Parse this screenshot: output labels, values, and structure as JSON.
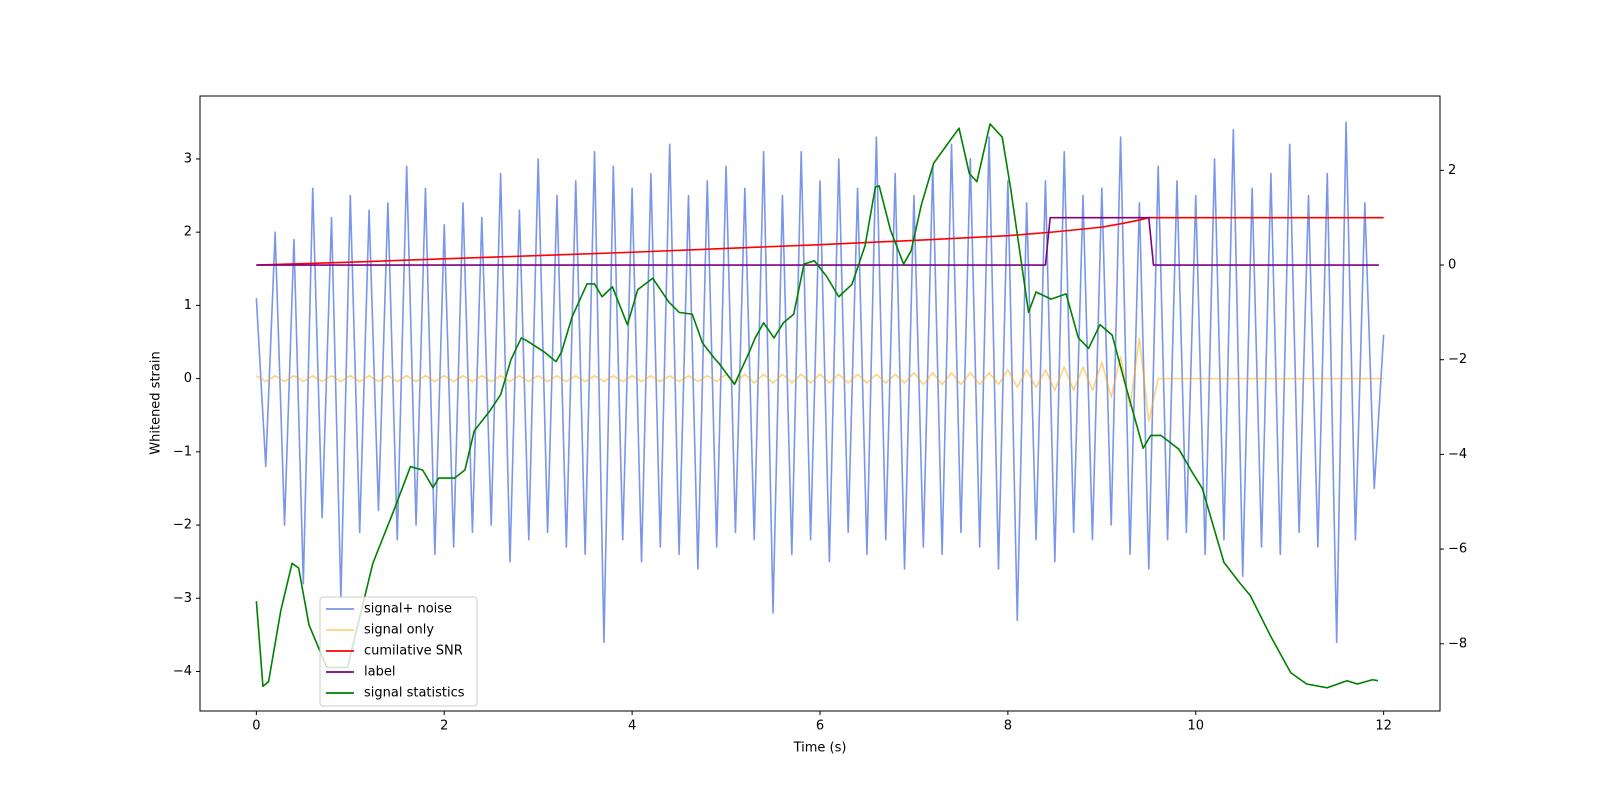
{
  "chart_data": {
    "type": "line",
    "xlabel": "Time (s)",
    "ylabel": "Whitened strain",
    "xlim": [
      -0.6,
      12.6
    ],
    "ylim": [
      -4.54,
      3.86
    ],
    "y2lim": [
      -9.42,
      3.57
    ],
    "xticks": [
      0,
      2,
      4,
      6,
      8,
      10,
      12
    ],
    "yticks": [
      {
        "value": -4,
        "label": "−4"
      },
      {
        "value": -3,
        "label": "−3"
      },
      {
        "value": -2,
        "label": "−2"
      },
      {
        "value": -1,
        "label": "−1"
      },
      0,
      1,
      2,
      3
    ],
    "y2ticks": [
      {
        "value": -8,
        "label": "−8"
      },
      {
        "value": -6,
        "label": "−6"
      },
      {
        "value": -4,
        "label": "−4"
      },
      {
        "value": -2,
        "label": "−2"
      },
      0,
      2
    ],
    "legend_loc": "lower left",
    "x": [
      0,
      0.1,
      0.2,
      0.3,
      0.4,
      0.5,
      0.6,
      0.7,
      0.8,
      0.9,
      1,
      1.1,
      1.2,
      1.3,
      1.4,
      1.5,
      1.6,
      1.7,
      1.8,
      1.9,
      2,
      2.1,
      2.2,
      2.3,
      2.4,
      2.5,
      2.6,
      2.7,
      2.8,
      2.9,
      3,
      3.1,
      3.2,
      3.3,
      3.4,
      3.5,
      3.6,
      3.7,
      3.8,
      3.9,
      4,
      4.1,
      4.2,
      4.3,
      4.4,
      4.5,
      4.6,
      4.7,
      4.8,
      4.9,
      5,
      5.1,
      5.2,
      5.3,
      5.4,
      5.5,
      5.6,
      5.7,
      5.8,
      5.9,
      6,
      6.1,
      6.2,
      6.3,
      6.4,
      6.5,
      6.6,
      6.7,
      6.8,
      6.9,
      7,
      7.1,
      7.2,
      7.3,
      7.4,
      7.5,
      7.6,
      7.7,
      7.8,
      7.9,
      8,
      8.1,
      8.2,
      8.3,
      8.4,
      8.5,
      8.6,
      8.7,
      8.8,
      8.9,
      9,
      9.1,
      9.2,
      9.3,
      9.4,
      9.5,
      9.6,
      9.7,
      9.8,
      9.9,
      10,
      10.1,
      10.2,
      10.3,
      10.4,
      10.5,
      10.6,
      10.7,
      10.8,
      10.9,
      11,
      11.1,
      11.2,
      11.3,
      11.4,
      11.5,
      11.6,
      11.7,
      11.8,
      11.9,
      12
    ],
    "series": [
      {
        "name": "signal+ noise",
        "color": "#4169e1",
        "alpha": 0.7,
        "values": [
          1.1,
          -1.2,
          2.0,
          -2.0,
          1.9,
          -2.8,
          2.6,
          -1.9,
          2.2,
          -3.0,
          2.5,
          -2.1,
          2.3,
          -1.8,
          2.4,
          -2.2,
          2.9,
          -2.0,
          2.6,
          -2.4,
          2.1,
          -2.3,
          2.4,
          -2.1,
          2.2,
          -2.0,
          2.8,
          -2.5,
          2.3,
          -2.2,
          3.0,
          -2.1,
          2.5,
          -2.3,
          2.7,
          -2.4,
          3.1,
          -3.6,
          2.9,
          -2.2,
          2.6,
          -2.5,
          2.8,
          -2.3,
          3.2,
          -2.4,
          2.5,
          -2.6,
          2.7,
          -2.3,
          2.9,
          -2.1,
          2.6,
          -2.2,
          3.1,
          -3.2,
          2.5,
          -2.4,
          3.1,
          -2.2,
          2.7,
          -2.5,
          3.0,
          -2.1,
          2.6,
          -2.4,
          3.3,
          -2.2,
          2.8,
          -2.6,
          2.5,
          -2.3,
          2.9,
          -2.4,
          3.2,
          -2.1,
          3.0,
          -2.3,
          3.3,
          -2.6,
          2.7,
          -3.3,
          2.4,
          -2.2,
          2.7,
          -2.5,
          3.1,
          -2.1,
          2.5,
          -2.2,
          2.6,
          -2.0,
          3.3,
          -2.4,
          2.4,
          -2.6,
          2.9,
          -2.2,
          2.7,
          -2.1,
          2.5,
          -2.4,
          3.0,
          -2.2,
          3.4,
          -2.7,
          2.6,
          -2.3,
          2.8,
          -2.4,
          3.2,
          -2.1,
          2.5,
          -2.3,
          2.8,
          -3.6,
          3.5,
          -2.2,
          2.4,
          -1.5,
          0.6
        ]
      },
      {
        "name": "signal only",
        "color": "#ffa500",
        "alpha": 0.5,
        "values": [
          0.04,
          -0.04,
          0.04,
          -0.04,
          0.04,
          -0.04,
          0.04,
          -0.04,
          0.04,
          -0.04,
          0.04,
          -0.04,
          0.04,
          -0.04,
          0.04,
          -0.04,
          0.04,
          -0.04,
          0.04,
          -0.04,
          0.04,
          -0.04,
          0.04,
          -0.04,
          0.04,
          -0.04,
          0.04,
          -0.04,
          0.04,
          -0.04,
          0.04,
          -0.04,
          0.04,
          -0.04,
          0.04,
          -0.04,
          0.04,
          -0.04,
          0.04,
          -0.04,
          0.04,
          -0.04,
          0.04,
          -0.04,
          0.04,
          -0.04,
          0.04,
          -0.04,
          0.04,
          -0.04,
          0.06,
          -0.06,
          0.06,
          -0.06,
          0.06,
          -0.06,
          0.06,
          -0.06,
          0.06,
          -0.06,
          0.06,
          -0.06,
          0.06,
          -0.06,
          0.06,
          -0.06,
          0.06,
          -0.06,
          0.06,
          -0.06,
          0.08,
          -0.08,
          0.08,
          -0.08,
          0.08,
          -0.08,
          0.08,
          -0.08,
          0.08,
          -0.08,
          0.12,
          -0.12,
          0.12,
          -0.12,
          0.12,
          -0.16,
          0.16,
          -0.16,
          0.16,
          -0.16,
          0.22,
          -0.25,
          0.3,
          -0.38,
          0.55,
          -0.58,
          0,
          0,
          0,
          0,
          0,
          0,
          0,
          0,
          0,
          0,
          0,
          0,
          0,
          0,
          0,
          0,
          0,
          0,
          0,
          0,
          0,
          0,
          0,
          0,
          0
        ]
      },
      {
        "name": "cumilative SNR",
        "color": "red",
        "axis": "y2",
        "x": [
          0,
          1,
          2,
          3,
          4,
          5,
          6,
          7,
          8,
          8.5,
          9,
          9.2,
          9.4,
          9.5,
          12
        ],
        "values": [
          0,
          0.06,
          0.13,
          0.2,
          0.27,
          0.35,
          0.43,
          0.52,
          0.62,
          0.7,
          0.8,
          0.87,
          0.95,
          1,
          1
        ]
      },
      {
        "name": "label",
        "color": "purple",
        "axis": "y2",
        "x": [
          0,
          8.4,
          8.45,
          9.5,
          9.55,
          11.95
        ],
        "values": [
          0,
          0,
          1,
          1,
          0,
          0
        ]
      },
      {
        "name": "signal statistics",
        "color": "green",
        "axis": "y2",
        "x": [
          0,
          0.07,
          0.13,
          0.26,
          0.38,
          0.45,
          0.56,
          0.75,
          0.97,
          1.24,
          1.46,
          1.64,
          1.77,
          1.88,
          1.94,
          2.11,
          2.22,
          2.32,
          2.49,
          2.6,
          2.71,
          2.82,
          2.88,
          3.06,
          3.19,
          3.25,
          3.36,
          3.52,
          3.6,
          3.68,
          3.79,
          3.95,
          4.06,
          4.22,
          4.39,
          4.5,
          4.64,
          4.75,
          4.88,
          4.93,
          5.09,
          5.24,
          5.31,
          5.4,
          5.51,
          5.61,
          5.72,
          5.83,
          5.94,
          6.07,
          6.2,
          6.34,
          6.48,
          6.59,
          6.63,
          6.75,
          6.89,
          6.97,
          7.08,
          7.21,
          7.37,
          7.48,
          7.59,
          7.67,
          7.81,
          7.94,
          8.03,
          8.13,
          8.22,
          8.3,
          8.46,
          8.62,
          8.75,
          8.86,
          8.98,
          9.11,
          9.25,
          9.44,
          9.52,
          9.63,
          9.82,
          9.96,
          10.07,
          10.3,
          10.47,
          10.58,
          10.8,
          11.01,
          11.18,
          11.4,
          11.61,
          11.72,
          11.88,
          11.94
        ],
        "values": [
          -7.1,
          -8.9,
          -8.8,
          -7.3,
          -6.3,
          -6.4,
          -7.6,
          -8.5,
          -8.5,
          -6.3,
          -5.2,
          -4.26,
          -4.33,
          -4.7,
          -4.5,
          -4.5,
          -4.33,
          -3.5,
          -3.07,
          -2.74,
          -2.0,
          -1.54,
          -1.6,
          -1.83,
          -2.04,
          -1.83,
          -1.1,
          -0.4,
          -0.4,
          -0.67,
          -0.46,
          -1.26,
          -0.52,
          -0.28,
          -0.78,
          -1.0,
          -1.04,
          -1.65,
          -1.98,
          -2.09,
          -2.52,
          -1.87,
          -1.54,
          -1.22,
          -1.54,
          -1.22,
          -1.04,
          0.02,
          0.09,
          -0.24,
          -0.67,
          -0.41,
          0.41,
          1.65,
          1.67,
          0.74,
          0.02,
          0.3,
          1.28,
          2.15,
          2.59,
          2.89,
          1.93,
          1.76,
          2.98,
          2.7,
          1.61,
          0.24,
          -1.0,
          -0.57,
          -0.72,
          -0.61,
          -1.54,
          -1.76,
          -1.26,
          -1.48,
          -2.52,
          -3.87,
          -3.6,
          -3.6,
          -3.89,
          -4.37,
          -4.72,
          -6.28,
          -6.72,
          -6.98,
          -7.85,
          -8.61,
          -8.85,
          -8.93,
          -8.78,
          -8.85,
          -8.76,
          -8.78
        ]
      }
    ]
  }
}
